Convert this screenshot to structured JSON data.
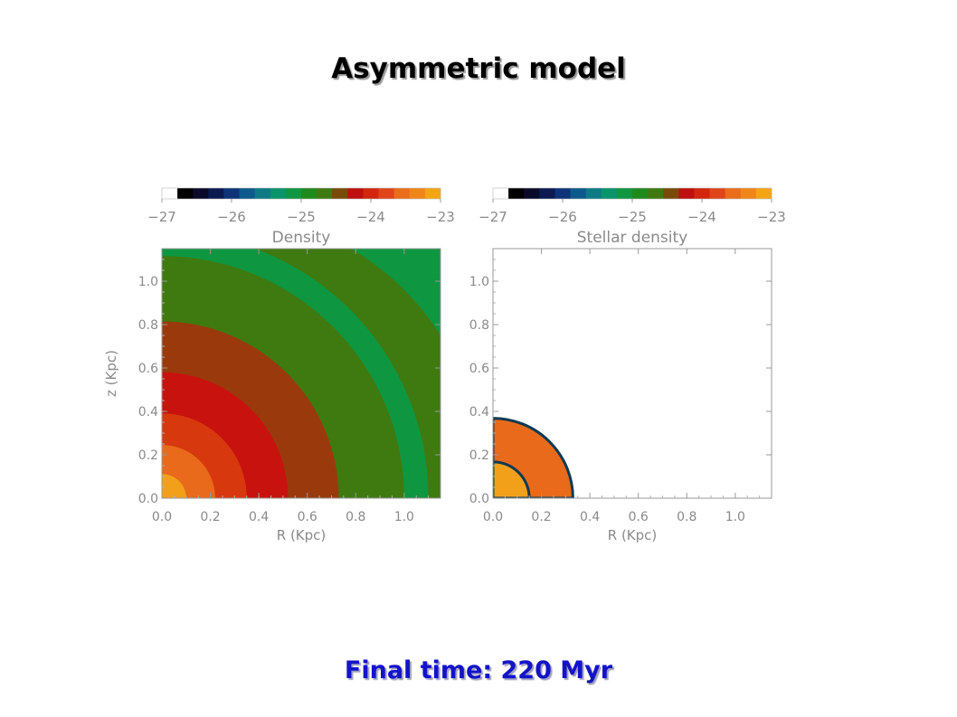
{
  "slide": {
    "title": "Asymmetric model",
    "caption": "Final time: 220 Myr"
  },
  "chart_data": [
    {
      "type": "heatmap",
      "title": "",
      "colorbar_label": "Density",
      "colorbar_ticks": [
        "−27",
        "−26",
        "−25",
        "−24",
        "−23"
      ],
      "colorbar_range": [
        -27,
        -23
      ],
      "colorbar_colors": [
        "#ffffff",
        "#000000",
        "#0a0a2a",
        "#0c1a52",
        "#0e3478",
        "#0c5a8c",
        "#0e7a86",
        "#0a946a",
        "#0f9640",
        "#1f8a1c",
        "#3e7a10",
        "#7a4a0a",
        "#bf0f0f",
        "#d3260e",
        "#e0451a",
        "#ea6d1a",
        "#f0861a",
        "#f4a514"
      ],
      "xlabel": "R (Kpc)",
      "ylabel": "z (Kpc)",
      "xticks": [
        "0.0",
        "0.2",
        "0.4",
        "0.6",
        "0.8",
        "1.0"
      ],
      "yticks": [
        "0.0",
        "0.2",
        "0.4",
        "0.6",
        "0.8",
        "1.0"
      ],
      "xlim": [
        0.0,
        1.15
      ],
      "ylim": [
        0.0,
        1.15
      ],
      "contour_levels": [
        {
          "outer_radius_kpc": 1.1,
          "color": "#0f9640"
        },
        {
          "outer_radius_kpc": 1.0,
          "color": "#3e7a10"
        },
        {
          "outer_radius_kpc": 0.73,
          "color": "#9a3a0c"
        },
        {
          "outer_radius_kpc": 0.52,
          "color": "#c8120e"
        },
        {
          "outer_radius_kpc": 0.35,
          "color": "#d8380e"
        },
        {
          "outer_radius_kpc": 0.22,
          "color": "#e86a1a"
        },
        {
          "outer_radius_kpc": 0.1,
          "color": "#f2a01a"
        }
      ]
    },
    {
      "type": "heatmap",
      "title": "",
      "colorbar_label": "Stellar density",
      "colorbar_ticks": [
        "−27",
        "−26",
        "−25",
        "−24",
        "−23"
      ],
      "colorbar_range": [
        -27,
        -23
      ],
      "colorbar_colors": [
        "#ffffff",
        "#000000",
        "#0a0a2a",
        "#0c1a52",
        "#0e3478",
        "#0c5a8c",
        "#0e7a86",
        "#0a946a",
        "#0f9640",
        "#1f8a1c",
        "#3e7a10",
        "#7a4a0a",
        "#bf0f0f",
        "#d3260e",
        "#e0451a",
        "#ea6d1a",
        "#f0861a",
        "#f4a514"
      ],
      "xlabel": "R (Kpc)",
      "ylabel": "",
      "xticks": [
        "0.0",
        "0.2",
        "0.4",
        "0.6",
        "0.8",
        "1.0"
      ],
      "yticks": [
        "0.0",
        "0.2",
        "0.4",
        "0.6",
        "0.8",
        "1.0"
      ],
      "xlim": [
        0.0,
        1.15
      ],
      "ylim": [
        0.0,
        1.15
      ],
      "contour_levels": [
        {
          "outer_radius_kpc": 0.33,
          "color": "#e86a1a"
        },
        {
          "outer_radius_kpc": 0.15,
          "color": "#f2a01a"
        }
      ]
    }
  ]
}
